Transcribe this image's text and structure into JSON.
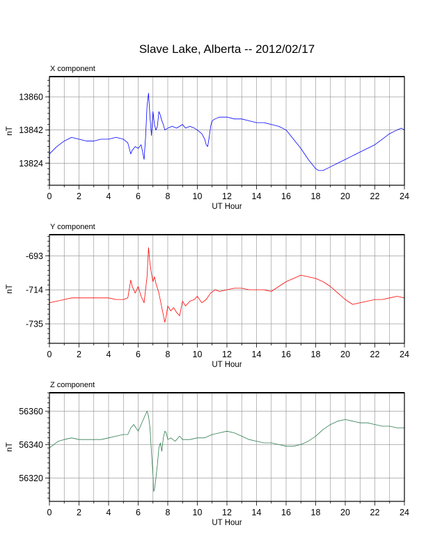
{
  "title": "Slave Lake, Alberta -- 2012/02/17",
  "chart_data": [
    {
      "type": "line",
      "panel_title": "X component",
      "xlabel": "UT Hour",
      "ylabel": "nT",
      "xlim": [
        0,
        24
      ],
      "ylim": [
        13812,
        13871
      ],
      "x_ticks": [
        0,
        2,
        4,
        6,
        8,
        10,
        12,
        14,
        16,
        18,
        20,
        22,
        24
      ],
      "y_ticks": [
        13824,
        13842,
        13860
      ],
      "grid": true,
      "color": "#0000ff",
      "series": [
        {
          "x": [
            0,
            0.5,
            1,
            1.5,
            2,
            2.5,
            3,
            3.5,
            4,
            4.5,
            5,
            5.3,
            5.5,
            5.6,
            5.8,
            6,
            6.2,
            6.4,
            6.5,
            6.6,
            6.7,
            6.8,
            6.9,
            7.0,
            7.1,
            7.2,
            7.3,
            7.4,
            7.5,
            7.6,
            7.7,
            7.8,
            8,
            8.3,
            8.6,
            9,
            9.2,
            9.5,
            9.8,
            10,
            10.3,
            10.5,
            10.6,
            10.7,
            10.8,
            10.9,
            11,
            11.2,
            11.5,
            12,
            12.5,
            13,
            13.5,
            14,
            14.5,
            15,
            15.5,
            16,
            16.5,
            17,
            17.5,
            18,
            18.2,
            18.5,
            19,
            19.5,
            20,
            20.5,
            21,
            21.5,
            22,
            22.5,
            23,
            23.5,
            23.8,
            24
          ],
          "y": [
            13829,
            13833,
            13836,
            13838,
            13837,
            13836,
            13836,
            13837,
            13837,
            13838,
            13837,
            13835,
            13829,
            13831,
            13833,
            13832,
            13834,
            13826,
            13838,
            13855,
            13862,
            13849,
            13839,
            13852,
            13845,
            13842,
            13844,
            13852,
            13850,
            13847,
            13845,
            13842,
            13843,
            13844,
            13843,
            13845,
            13843,
            13844,
            13843,
            13842,
            13840,
            13837,
            13834,
            13833,
            13838,
            13844,
            13847,
            13848,
            13849,
            13849,
            13848,
            13848,
            13847,
            13846,
            13846,
            13845,
            13844,
            13842,
            13837,
            13832,
            13826,
            13821,
            13820,
            13820,
            13822,
            13824,
            13826,
            13828,
            13830,
            13832,
            13834,
            13837,
            13840,
            13842,
            13843,
            13842
          ]
        }
      ]
    },
    {
      "type": "line",
      "panel_title": "Y component",
      "xlabel": "UT Hour",
      "ylabel": "nT",
      "xlim": [
        0,
        24
      ],
      "ylim": [
        -747,
        -680
      ],
      "x_ticks": [
        0,
        2,
        4,
        6,
        8,
        10,
        12,
        14,
        16,
        18,
        20,
        22,
        24
      ],
      "y_ticks": [
        -693,
        -714,
        -735
      ],
      "grid": true,
      "color": "#ff0000",
      "series": [
        {
          "x": [
            0,
            0.5,
            1,
            1.5,
            2,
            3,
            4,
            4.5,
            5,
            5.3,
            5.5,
            5.6,
            5.8,
            6,
            6.2,
            6.4,
            6.6,
            6.7,
            6.8,
            6.9,
            7.0,
            7.1,
            7.2,
            7.4,
            7.6,
            7.8,
            7.9,
            8.0,
            8.2,
            8.4,
            8.6,
            8.8,
            9.0,
            9.2,
            9.5,
            9.8,
            10,
            10.3,
            10.6,
            10.9,
            11.2,
            11.5,
            12,
            12.5,
            13,
            13.5,
            14,
            14.5,
            15,
            15.5,
            16,
            16.5,
            17,
            17.5,
            18,
            18.5,
            19,
            19.5,
            20,
            20.5,
            21,
            21.5,
            22,
            22.5,
            23,
            23.5,
            24
          ],
          "y": [
            -722,
            -721,
            -720,
            -719,
            -719,
            -719,
            -719,
            -720,
            -720,
            -719,
            -708,
            -712,
            -716,
            -712,
            -718,
            -722,
            -706,
            -688,
            -698,
            -704,
            -709,
            -706,
            -710,
            -716,
            -725,
            -734,
            -730,
            -724,
            -727,
            -725,
            -728,
            -730,
            -721,
            -724,
            -721,
            -720,
            -718,
            -722,
            -720,
            -716,
            -714,
            -715,
            -714,
            -713,
            -713,
            -714,
            -714,
            -714,
            -715,
            -712,
            -709,
            -707,
            -705,
            -706,
            -707,
            -709,
            -712,
            -716,
            -720,
            -723,
            -722,
            -721,
            -720,
            -720,
            -719,
            -718,
            -719
          ]
        }
      ]
    },
    {
      "type": "line",
      "panel_title": "Z component",
      "xlabel": "UT Hour",
      "ylabel": "nT",
      "xlim": [
        0,
        24
      ],
      "ylim": [
        56306,
        56371
      ],
      "x_ticks": [
        0,
        2,
        4,
        6,
        8,
        10,
        12,
        14,
        16,
        18,
        20,
        22,
        24
      ],
      "y_ticks": [
        56320,
        56340,
        56360
      ],
      "grid": true,
      "color": "#2e7d4f",
      "series": [
        {
          "x": [
            0,
            0.3,
            0.6,
            1,
            1.5,
            2,
            2.5,
            3,
            3.5,
            4,
            4.5,
            5,
            5.3,
            5.5,
            5.7,
            6,
            6.2,
            6.4,
            6.6,
            6.7,
            6.8,
            6.9,
            7.0,
            7.05,
            7.1,
            7.2,
            7.3,
            7.4,
            7.5,
            7.6,
            7.7,
            7.8,
            7.9,
            8.0,
            8.2,
            8.5,
            8.8,
            9,
            9.5,
            10,
            10.5,
            11,
            11.5,
            12,
            12.5,
            13,
            13.5,
            14,
            14.5,
            15,
            15.5,
            16,
            16.5,
            17,
            17.5,
            18,
            18.5,
            19,
            19.5,
            20,
            20.5,
            21,
            21.5,
            22,
            22.5,
            23,
            23.5,
            24
          ],
          "y": [
            56338,
            56340,
            56342,
            56343,
            56344,
            56343,
            56343,
            56343,
            56343,
            56344,
            56345,
            56346,
            56346,
            56350,
            56352,
            56348,
            56352,
            56356,
            56360,
            56357,
            56350,
            56335,
            56322,
            56312,
            56313,
            56320,
            56328,
            56338,
            56341,
            56336,
            56344,
            56348,
            56347,
            56343,
            56344,
            56342,
            56345,
            56343,
            56343,
            56344,
            56344,
            56346,
            56347,
            56348,
            56347,
            56345,
            56343,
            56342,
            56341,
            56341,
            56340,
            56339,
            56339,
            56340,
            56342,
            56345,
            56349,
            56352,
            56354,
            56355,
            56354,
            56353,
            56353,
            56352,
            56351,
            56351,
            56350,
            56350
          ]
        }
      ]
    }
  ]
}
